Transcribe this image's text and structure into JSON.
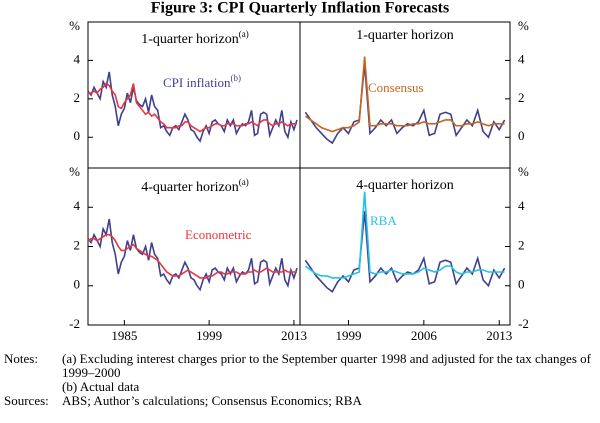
{
  "title": "Figure 3: CPI Quarterly Inflation Forecasts",
  "chart_data": [
    {
      "type": "line",
      "title": "1-quarter horizon",
      "title_superscript": "(a)",
      "unit": "%",
      "xlim": [
        1979,
        2014
      ],
      "ylim": [
        -1.6,
        6
      ],
      "yticks": [
        0,
        2,
        4
      ],
      "grid": false,
      "x": [
        1979,
        1979.5,
        1980,
        1980.5,
        1981,
        1981.5,
        1982,
        1982.5,
        1983,
        1983.5,
        1984,
        1984.5,
        1985,
        1985.5,
        1986,
        1986.5,
        1987,
        1987.5,
        1988,
        1988.5,
        1989,
        1989.5,
        1990,
        1990.5,
        1991,
        1991.5,
        1992,
        1992.5,
        1993,
        1993.5,
        1994,
        1994.5,
        1995,
        1995.5,
        1996,
        1996.5,
        1997,
        1997.5,
        1998,
        1998.5,
        1999,
        1999.5,
        2000,
        2000.5,
        2001,
        2001.5,
        2002,
        2002.5,
        2003,
        2003.5,
        2004,
        2004.5,
        2005,
        2005.5,
        2006,
        2006.5,
        2007,
        2007.5,
        2008,
        2008.5,
        2009,
        2009.5,
        2010,
        2010.5,
        2011,
        2011.5,
        2012,
        2012.5,
        2013,
        2013.5
      ],
      "series": [
        {
          "name": "CPI inflation",
          "name_superscript": "(b)",
          "color": "#3f3f8f",
          "values": [
            2.4,
            2.2,
            2.6,
            2.3,
            2.0,
            2.9,
            2.6,
            3.4,
            2.2,
            1.6,
            0.6,
            1.2,
            1.5,
            2.3,
            1.8,
            2.6,
            1.9,
            1.7,
            1.6,
            2.0,
            1.3,
            2.2,
            1.6,
            1.4,
            0.5,
            0.6,
            0.3,
            0.1,
            0.5,
            0.6,
            0.4,
            0.8,
            1.2,
            0.9,
            0.4,
            0.3,
            0.0,
            -0.2,
            0.3,
            0.6,
            0.2,
            0.8,
            0.9,
            0.7,
            0.6,
            0.3,
            0.9,
            0.6,
            0.9,
            0.2,
            0.5,
            0.7,
            0.6,
            0.8,
            1.4,
            0.1,
            0.2,
            1.2,
            1.3,
            1.2,
            0.1,
            0.5,
            0.9,
            0.6,
            1.4,
            0.3,
            0.0,
            0.8,
            0.4,
            0.9
          ]
        },
        {
          "color": "#e8363c",
          "values": [
            2.3,
            2.3,
            2.4,
            2.3,
            2.5,
            2.6,
            2.8,
            2.7,
            2.4,
            2.2,
            1.6,
            1.5,
            1.8,
            2.0,
            2.2,
            2.8,
            1.8,
            1.6,
            1.4,
            1.2,
            1.3,
            1.1,
            1.2,
            1.0,
            0.8,
            0.7,
            0.5,
            0.5,
            0.5,
            0.5,
            0.6,
            0.6,
            0.8,
            0.8,
            0.6,
            0.5,
            0.4,
            0.3,
            0.4,
            0.5,
            0.5,
            0.6,
            0.7,
            0.7,
            0.6,
            0.6,
            0.7,
            0.7,
            0.7,
            0.6,
            0.6,
            0.6,
            0.7,
            0.7,
            0.8,
            0.7,
            0.6,
            0.8,
            0.9,
            0.9,
            0.7,
            0.6,
            0.7,
            0.7,
            0.8,
            0.7,
            0.6,
            0.7,
            0.7,
            0.7
          ]
        }
      ]
    },
    {
      "type": "line",
      "title": "1-quarter horizon",
      "unit": "%",
      "xlim": [
        1994.5,
        2014
      ],
      "ylim": [
        -1.6,
        6
      ],
      "yticks": [
        0,
        2,
        4
      ],
      "grid": false,
      "x": [
        1995,
        1995.5,
        1996,
        1996.5,
        1997,
        1997.5,
        1998,
        1998.5,
        1999,
        1999.5,
        2000,
        2000.5,
        2001,
        2001.5,
        2002,
        2002.5,
        2003,
        2003.5,
        2004,
        2004.5,
        2005,
        2005.5,
        2006,
        2006.5,
        2007,
        2007.5,
        2008,
        2008.5,
        2009,
        2009.5,
        2010,
        2010.5,
        2011,
        2011.5,
        2012,
        2012.5,
        2013,
        2013.5
      ],
      "series": [
        {
          "color": "#3f3f8f",
          "values": [
            1.3,
            0.9,
            0.5,
            0.2,
            -0.1,
            -0.3,
            0.2,
            0.5,
            0.2,
            0.8,
            0.9,
            3.8,
            0.2,
            0.5,
            0.9,
            0.6,
            0.9,
            0.2,
            0.5,
            0.7,
            0.6,
            0.8,
            1.4,
            0.1,
            0.2,
            1.2,
            1.3,
            1.2,
            0.1,
            0.5,
            0.9,
            0.6,
            1.4,
            0.3,
            0.0,
            0.8,
            0.4,
            0.9
          ]
        },
        {
          "name": "Consensus",
          "color": "#c8641e",
          "values": [
            1.1,
            0.9,
            0.7,
            0.5,
            0.4,
            0.3,
            0.4,
            0.5,
            0.5,
            0.6,
            0.8,
            4.2,
            0.6,
            0.6,
            0.7,
            0.7,
            0.7,
            0.6,
            0.6,
            0.6,
            0.7,
            0.7,
            0.8,
            0.7,
            0.7,
            0.8,
            0.9,
            0.9,
            0.6,
            0.6,
            0.7,
            0.7,
            0.8,
            0.7,
            0.6,
            0.7,
            0.7,
            0.7
          ]
        }
      ]
    },
    {
      "type": "line",
      "title": "4-quarter horizon",
      "title_superscript": "(a)",
      "unit": "%",
      "xlim": [
        1979,
        2014
      ],
      "ylim": [
        -2,
        6
      ],
      "yticks": [
        -2,
        0,
        2,
        4
      ],
      "grid": false,
      "xticks": [
        1985,
        1999,
        2013
      ],
      "x": [
        1979,
        1979.5,
        1980,
        1980.5,
        1981,
        1981.5,
        1982,
        1982.5,
        1983,
        1983.5,
        1984,
        1984.5,
        1985,
        1985.5,
        1986,
        1986.5,
        1987,
        1987.5,
        1988,
        1988.5,
        1989,
        1989.5,
        1990,
        1990.5,
        1991,
        1991.5,
        1992,
        1992.5,
        1993,
        1993.5,
        1994,
        1994.5,
        1995,
        1995.5,
        1996,
        1996.5,
        1997,
        1997.5,
        1998,
        1998.5,
        1999,
        1999.5,
        2000,
        2000.5,
        2001,
        2001.5,
        2002,
        2002.5,
        2003,
        2003.5,
        2004,
        2004.5,
        2005,
        2005.5,
        2006,
        2006.5,
        2007,
        2007.5,
        2008,
        2008.5,
        2009,
        2009.5,
        2010,
        2010.5,
        2011,
        2011.5,
        2012,
        2012.5,
        2013,
        2013.5
      ],
      "series": [
        {
          "color": "#3f3f8f",
          "values": [
            2.4,
            2.2,
            2.6,
            2.3,
            2.0,
            2.9,
            2.6,
            3.4,
            2.2,
            1.6,
            0.6,
            1.2,
            1.5,
            2.3,
            1.8,
            2.6,
            1.9,
            1.7,
            1.6,
            2.0,
            1.3,
            2.2,
            1.6,
            1.4,
            0.5,
            0.6,
            0.3,
            0.1,
            0.5,
            0.6,
            0.4,
            0.8,
            1.2,
            0.9,
            0.4,
            0.3,
            0.0,
            -0.2,
            0.3,
            0.6,
            0.2,
            0.8,
            0.9,
            0.7,
            0.6,
            0.3,
            0.9,
            0.6,
            0.9,
            0.2,
            0.5,
            0.7,
            0.6,
            0.8,
            1.4,
            0.1,
            0.2,
            1.2,
            1.3,
            1.2,
            0.1,
            0.5,
            0.9,
            0.6,
            1.4,
            0.3,
            0.0,
            0.8,
            0.4,
            0.9
          ]
        },
        {
          "name": "Econometric",
          "color": "#e8363c",
          "values": [
            2.3,
            2.4,
            2.4,
            2.3,
            2.4,
            2.5,
            2.6,
            2.6,
            2.5,
            2.3,
            2.0,
            1.8,
            1.8,
            1.9,
            2.0,
            2.1,
            1.9,
            1.8,
            1.7,
            1.6,
            1.5,
            1.5,
            1.4,
            1.3,
            1.1,
            0.9,
            0.7,
            0.6,
            0.5,
            0.5,
            0.5,
            0.6,
            0.7,
            0.8,
            0.7,
            0.6,
            0.5,
            0.4,
            0.4,
            0.4,
            0.5,
            0.5,
            0.6,
            0.7,
            0.7,
            0.6,
            0.6,
            0.7,
            0.7,
            0.7,
            0.6,
            0.6,
            0.6,
            0.7,
            0.7,
            0.8,
            0.7,
            0.7,
            0.8,
            0.9,
            0.8,
            0.7,
            0.7,
            0.7,
            0.7,
            0.8,
            0.7,
            0.7,
            0.7,
            0.7
          ]
        }
      ]
    },
    {
      "type": "line",
      "title": "4-quarter horizon",
      "unit": "%",
      "xlim": [
        1994.5,
        2014
      ],
      "ylim": [
        -2,
        6
      ],
      "yticks": [
        -2,
        0,
        2,
        4
      ],
      "grid": false,
      "xticks": [
        1999,
        2006,
        2013
      ],
      "x": [
        1995,
        1995.5,
        1996,
        1996.5,
        1997,
        1997.5,
        1998,
        1998.5,
        1999,
        1999.5,
        2000,
        2000.5,
        2001,
        2001.5,
        2002,
        2002.5,
        2003,
        2003.5,
        2004,
        2004.5,
        2005,
        2005.5,
        2006,
        2006.5,
        2007,
        2007.5,
        2008,
        2008.5,
        2009,
        2009.5,
        2010,
        2010.5,
        2011,
        2011.5,
        2012,
        2012.5,
        2013,
        2013.5
      ],
      "series": [
        {
          "color": "#3f3f8f",
          "values": [
            1.3,
            0.9,
            0.5,
            0.2,
            -0.1,
            -0.3,
            0.2,
            0.5,
            0.2,
            0.8,
            0.9,
            3.8,
            0.2,
            0.5,
            0.9,
            0.6,
            0.9,
            0.2,
            0.5,
            0.7,
            0.6,
            0.8,
            1.4,
            0.1,
            0.2,
            1.2,
            1.3,
            1.2,
            0.1,
            0.5,
            0.9,
            0.6,
            1.4,
            0.3,
            0.0,
            0.8,
            0.4,
            0.9
          ]
        },
        {
          "name": "RBA",
          "color": "#22c4e6",
          "values": [
            1.0,
            0.8,
            0.6,
            0.5,
            0.5,
            0.4,
            0.4,
            0.4,
            0.5,
            0.6,
            0.7,
            4.8,
            0.7,
            0.6,
            0.7,
            0.7,
            0.8,
            0.7,
            0.6,
            0.6,
            0.6,
            0.7,
            0.9,
            0.8,
            0.7,
            0.8,
            1.0,
            1.0,
            0.7,
            0.6,
            0.7,
            0.7,
            0.8,
            0.8,
            0.7,
            0.7,
            0.7,
            0.7
          ]
        }
      ]
    }
  ],
  "notes": {
    "label": "Notes:",
    "items": [
      "(a) Excluding interest charges prior to the September quarter 1998 and adjusted for the tax changes of 1999–2000",
      "(b) Actual data"
    ]
  },
  "sources": {
    "label": "Sources:",
    "text": "ABS; Author’s calculations; Consensus Economics; RBA"
  }
}
